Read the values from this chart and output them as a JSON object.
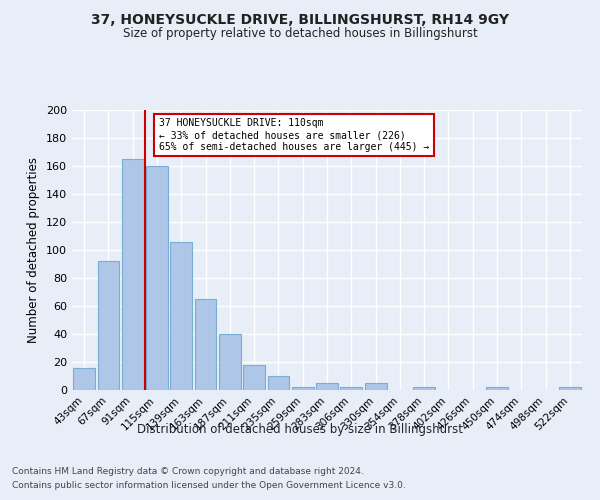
{
  "title": "37, HONEYSUCKLE DRIVE, BILLINGSHURST, RH14 9GY",
  "subtitle": "Size of property relative to detached houses in Billingshurst",
  "xlabel": "Distribution of detached houses by size in Billingshurst",
  "ylabel": "Number of detached properties",
  "footnote1": "Contains HM Land Registry data © Crown copyright and database right 2024.",
  "footnote2": "Contains public sector information licensed under the Open Government Licence v3.0.",
  "bar_labels": [
    "43sqm",
    "67sqm",
    "91sqm",
    "115sqm",
    "139sqm",
    "163sqm",
    "187sqm",
    "211sqm",
    "235sqm",
    "259sqm",
    "283sqm",
    "306sqm",
    "330sqm",
    "354sqm",
    "378sqm",
    "402sqm",
    "426sqm",
    "450sqm",
    "474sqm",
    "498sqm",
    "522sqm"
  ],
  "bar_values": [
    16,
    92,
    165,
    160,
    106,
    65,
    40,
    18,
    10,
    2,
    5,
    2,
    5,
    0,
    2,
    0,
    0,
    2,
    0,
    0,
    2
  ],
  "bar_color": "#aec6e8",
  "bar_edgecolor": "#7aadd4",
  "vline_x": 2.5,
  "vline_color": "#cc0000",
  "annotation_title": "37 HONEYSUCKLE DRIVE: 110sqm",
  "annotation_line1": "← 33% of detached houses are smaller (226)",
  "annotation_line2": "65% of semi-detached houses are larger (445) →",
  "annotation_box_color": "#cc0000",
  "ylim": [
    0,
    200
  ],
  "yticks": [
    0,
    20,
    40,
    60,
    80,
    100,
    120,
    140,
    160,
    180,
    200
  ],
  "background_color": "#e8eef7",
  "grid_color": "#ffffff"
}
